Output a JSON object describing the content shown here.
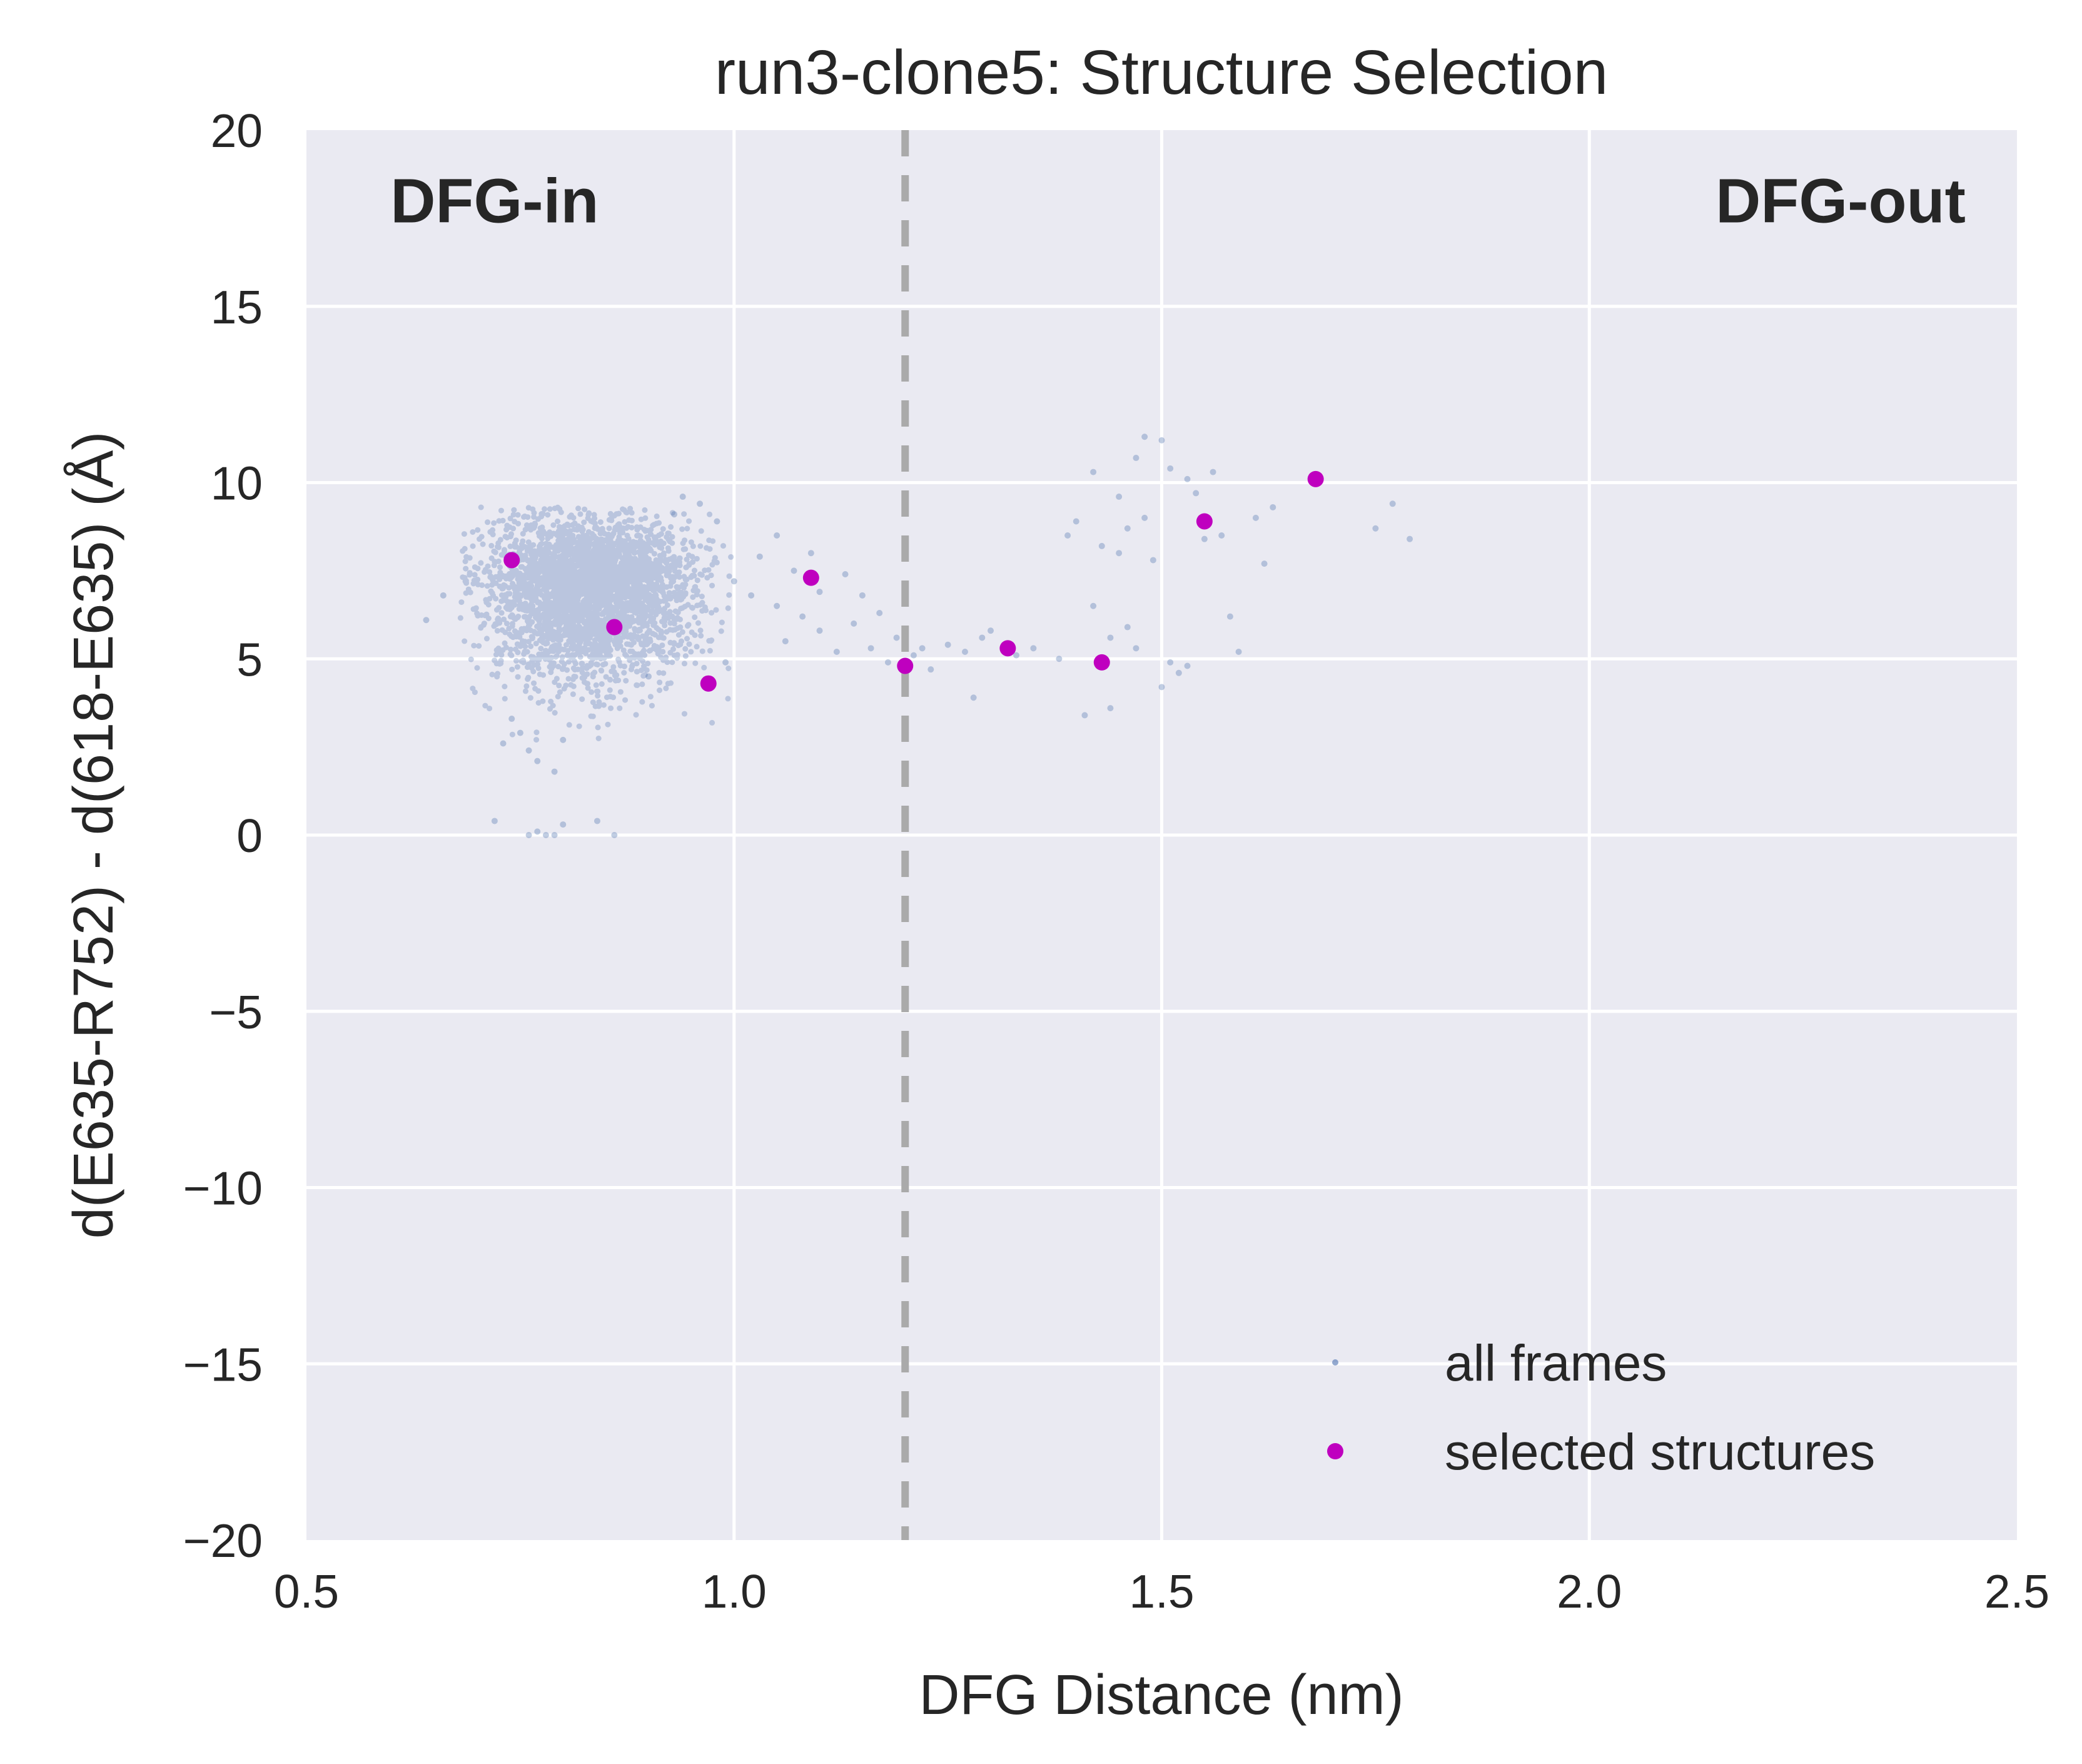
{
  "chart_data": {
    "type": "scatter",
    "title": "run3-clone5: Structure Selection",
    "xlabel": "DFG Distance (nm)",
    "ylabel": "d(E635-R752) - d(618-E635) (Å)",
    "xlim": [
      0.5,
      2.5
    ],
    "ylim": [
      -20,
      20
    ],
    "xticks": [
      "0.5",
      "1.0",
      "1.5",
      "2.0",
      "2.5"
    ],
    "yticks": [
      "−20",
      "−15",
      "−10",
      "−5",
      "0",
      "5",
      "10",
      "15",
      "20"
    ],
    "grid": true,
    "legend_position": "bottom-right",
    "threshold_line": {
      "x": 1.2,
      "style": "dashed",
      "color": "#aaaaaa"
    },
    "annotations": [
      {
        "text": "DFG-in",
        "x": 0.72,
        "y": 18,
        "anchor": "middle"
      },
      {
        "text": "DFG-out",
        "x": 2.44,
        "y": 18,
        "anchor": "end"
      }
    ],
    "background_color": "#eaeaf2",
    "series": [
      {
        "name": "all frames",
        "color": "#4c72b0",
        "points": [
          [
            1.0,
            7.2
          ],
          [
            1.02,
            6.8
          ],
          [
            1.03,
            7.9
          ],
          [
            1.05,
            6.5
          ],
          [
            1.05,
            8.5
          ],
          [
            1.06,
            5.5
          ],
          [
            1.07,
            7.5
          ],
          [
            1.08,
            6.2
          ],
          [
            1.09,
            8.0
          ],
          [
            1.1,
            5.8
          ],
          [
            1.1,
            6.9
          ],
          [
            1.12,
            5.2
          ],
          [
            1.13,
            7.4
          ],
          [
            1.14,
            6.0
          ],
          [
            1.15,
            6.8
          ],
          [
            1.16,
            5.3
          ],
          [
            1.17,
            6.3
          ],
          [
            1.18,
            4.9
          ],
          [
            1.19,
            5.6
          ],
          [
            1.21,
            5.1
          ],
          [
            1.22,
            5.3
          ],
          [
            1.23,
            4.7
          ],
          [
            1.25,
            5.4
          ],
          [
            1.27,
            5.2
          ],
          [
            1.28,
            3.9
          ],
          [
            1.29,
            5.6
          ],
          [
            1.3,
            5.8
          ],
          [
            1.33,
            5.1
          ],
          [
            1.35,
            5.3
          ],
          [
            1.38,
            5.0
          ],
          [
            1.39,
            8.5
          ],
          [
            1.4,
            8.9
          ],
          [
            1.41,
            3.4
          ],
          [
            1.42,
            10.3
          ],
          [
            1.42,
            6.5
          ],
          [
            1.43,
            8.2
          ],
          [
            1.44,
            5.6
          ],
          [
            1.44,
            3.6
          ],
          [
            1.45,
            8.0
          ],
          [
            1.45,
            9.6
          ],
          [
            1.46,
            8.7
          ],
          [
            1.46,
            5.9
          ],
          [
            1.47,
            10.7
          ],
          [
            1.47,
            5.3
          ],
          [
            1.48,
            11.3
          ],
          [
            1.48,
            9.0
          ],
          [
            1.49,
            7.8
          ],
          [
            1.5,
            4.2
          ],
          [
            1.5,
            11.2
          ],
          [
            1.51,
            4.9
          ],
          [
            1.51,
            10.4
          ],
          [
            1.52,
            4.6
          ],
          [
            1.53,
            10.1
          ],
          [
            1.53,
            4.8
          ],
          [
            1.54,
            9.7
          ],
          [
            1.55,
            8.4
          ],
          [
            1.56,
            10.3
          ],
          [
            1.57,
            8.5
          ],
          [
            1.58,
            6.2
          ],
          [
            1.59,
            5.2
          ],
          [
            1.61,
            9.0
          ],
          [
            1.62,
            7.7
          ],
          [
            1.63,
            9.3
          ],
          [
            1.77,
            9.4
          ],
          [
            1.75,
            8.7
          ],
          [
            1.79,
            8.4
          ],
          [
            0.72,
            0.4
          ],
          [
            0.76,
            0.0
          ],
          [
            0.77,
            0.1
          ],
          [
            0.78,
            0.0
          ],
          [
            0.79,
            0.0
          ],
          [
            0.8,
            0.3
          ],
          [
            0.84,
            0.4
          ],
          [
            0.86,
            0.0
          ],
          [
            0.64,
            6.1
          ],
          [
            0.66,
            6.8
          ],
          [
            0.73,
            2.6
          ],
          [
            0.75,
            2.9
          ],
          [
            0.77,
            2.1
          ],
          [
            0.79,
            1.8
          ],
          [
            0.74,
            3.3
          ],
          [
            0.8,
            2.7
          ],
          [
            0.76,
            2.4
          ],
          [
            0.94,
            9.6
          ],
          [
            0.96,
            9.4
          ],
          [
            0.98,
            8.9
          ],
          [
            0.93,
            9.1
          ],
          [
            0.99,
            4.9
          ],
          [
            0.97,
            4.2
          ],
          [
            0.9,
            4.5
          ]
        ]
      },
      {
        "name": "selected structures",
        "color": "#bf00bf",
        "points": [
          [
            0.74,
            7.8
          ],
          [
            0.86,
            5.9
          ],
          [
            0.97,
            4.3
          ],
          [
            1.09,
            7.3
          ],
          [
            1.2,
            4.8
          ],
          [
            1.32,
            5.3
          ],
          [
            1.43,
            4.9
          ],
          [
            1.55,
            8.9
          ],
          [
            1.68,
            10.1
          ]
        ]
      }
    ],
    "dense_cluster": {
      "series": "all frames",
      "x_center": 0.83,
      "y_center": 7.0,
      "x_spread": 0.06,
      "y_spread": 1.0,
      "x_range": [
        0.68,
        1.0
      ],
      "y_range": [
        2.5,
        9.3
      ]
    }
  }
}
